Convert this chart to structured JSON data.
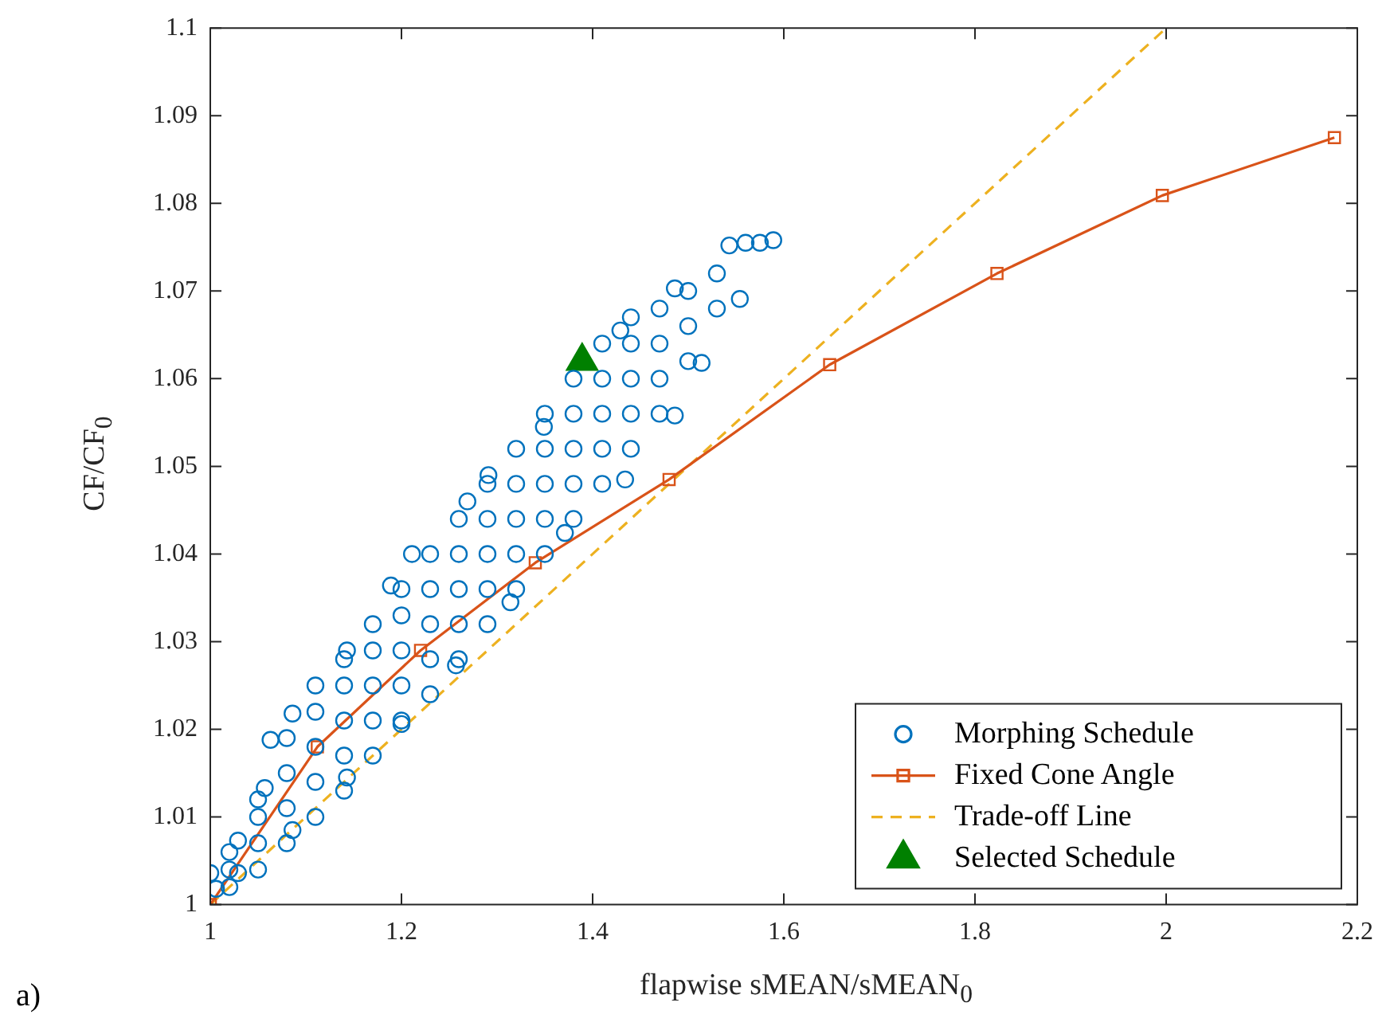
{
  "chart_data": {
    "type": "scatter",
    "xlabel": "flapwise sMEAN/sMEAN$_{0}$",
    "ylabel": "CF/CF$_{0}$",
    "xlim": [
      1,
      2.2
    ],
    "xticks": [
      1,
      1.2,
      1.4,
      1.6,
      1.8,
      2,
      2.2
    ],
    "ylim": [
      1,
      1.1
    ],
    "yticks": [
      1,
      1.01,
      1.02,
      1.03,
      1.04,
      1.05,
      1.06,
      1.07,
      1.08,
      1.09,
      1.1
    ],
    "legend": "bottom right",
    "annotations": [
      "a)"
    ],
    "series": [
      {
        "name": "Morphing Schedule",
        "marker": "circle",
        "color": "#0072bd",
        "x": [
          1.0,
          1.029,
          1.057,
          1.063,
          1.086,
          1.143,
          1.189,
          1.211,
          1.269,
          1.291,
          1.349,
          1.429,
          1.486,
          1.543,
          1.589,
          1.575,
          1.56,
          1.554,
          1.514,
          1.486,
          1.434,
          1.371,
          1.314,
          1.257,
          1.2,
          1.143,
          1.086,
          1.029,
          1.006,
          1.02,
          1.02,
          1.02,
          1.05,
          1.05,
          1.05,
          1.05,
          1.08,
          1.08,
          1.08,
          1.08,
          1.11,
          1.11,
          1.11,
          1.11,
          1.11,
          1.14,
          1.14,
          1.14,
          1.14,
          1.14,
          1.17,
          1.17,
          1.17,
          1.17,
          1.17,
          1.2,
          1.2,
          1.2,
          1.2,
          1.2,
          1.23,
          1.23,
          1.23,
          1.23,
          1.23,
          1.26,
          1.26,
          1.26,
          1.26,
          1.26,
          1.29,
          1.29,
          1.29,
          1.29,
          1.29,
          1.32,
          1.32,
          1.32,
          1.32,
          1.32,
          1.35,
          1.35,
          1.35,
          1.35,
          1.35,
          1.38,
          1.38,
          1.38,
          1.38,
          1.38,
          1.41,
          1.41,
          1.41,
          1.41,
          1.41,
          1.44,
          1.44,
          1.44,
          1.44,
          1.44,
          1.47,
          1.47,
          1.47,
          1.47,
          1.5,
          1.5,
          1.5,
          1.53,
          1.53
        ],
        "values": [
          1.0036,
          1.0073,
          1.0133,
          1.0188,
          1.0218,
          1.029,
          1.0364,
          1.04,
          1.046,
          1.049,
          1.0545,
          1.0655,
          1.0703,
          1.0752,
          1.0758,
          1.0755,
          1.0755,
          1.0691,
          1.0618,
          1.0558,
          1.0485,
          1.0424,
          1.0345,
          1.0273,
          1.0206,
          1.0145,
          1.0085,
          1.0036,
          1.0018,
          1.002,
          1.004,
          1.006,
          1.004,
          1.007,
          1.01,
          1.012,
          1.007,
          1.011,
          1.015,
          1.019,
          1.01,
          1.014,
          1.018,
          1.022,
          1.025,
          1.013,
          1.017,
          1.021,
          1.025,
          1.028,
          1.017,
          1.021,
          1.025,
          1.029,
          1.032,
          1.021,
          1.025,
          1.029,
          1.033,
          1.036,
          1.024,
          1.028,
          1.032,
          1.036,
          1.04,
          1.028,
          1.032,
          1.036,
          1.04,
          1.044,
          1.032,
          1.036,
          1.04,
          1.044,
          1.048,
          1.036,
          1.04,
          1.044,
          1.048,
          1.052,
          1.04,
          1.044,
          1.048,
          1.052,
          1.056,
          1.044,
          1.048,
          1.052,
          1.056,
          1.06,
          1.048,
          1.052,
          1.056,
          1.06,
          1.064,
          1.052,
          1.056,
          1.06,
          1.064,
          1.067,
          1.056,
          1.06,
          1.064,
          1.068,
          1.062,
          1.066,
          1.07,
          1.068,
          1.072
        ]
      },
      {
        "name": "Fixed Cone Angle",
        "type": "line",
        "marker": "square",
        "line_style": "solid",
        "color": "#d95319",
        "x": [
          1,
          1.112,
          1.22,
          1.34,
          1.48,
          1.648,
          1.823,
          1.996,
          2.176
        ],
        "values": [
          1,
          1.018,
          1.029,
          1.039,
          1.0485,
          1.0616,
          1.072,
          1.0809,
          1.0875
        ]
      },
      {
        "name": "Trade-off Line",
        "type": "line",
        "marker": "none",
        "line_style": "dashed",
        "color": "#edb120",
        "x": [
          1,
          2
        ],
        "values": [
          1,
          1.1
        ]
      },
      {
        "name": "Selected Schedule",
        "marker": "triangle",
        "color": "#008000",
        "x": [
          1.389
        ],
        "values": [
          1.062
        ]
      }
    ]
  }
}
